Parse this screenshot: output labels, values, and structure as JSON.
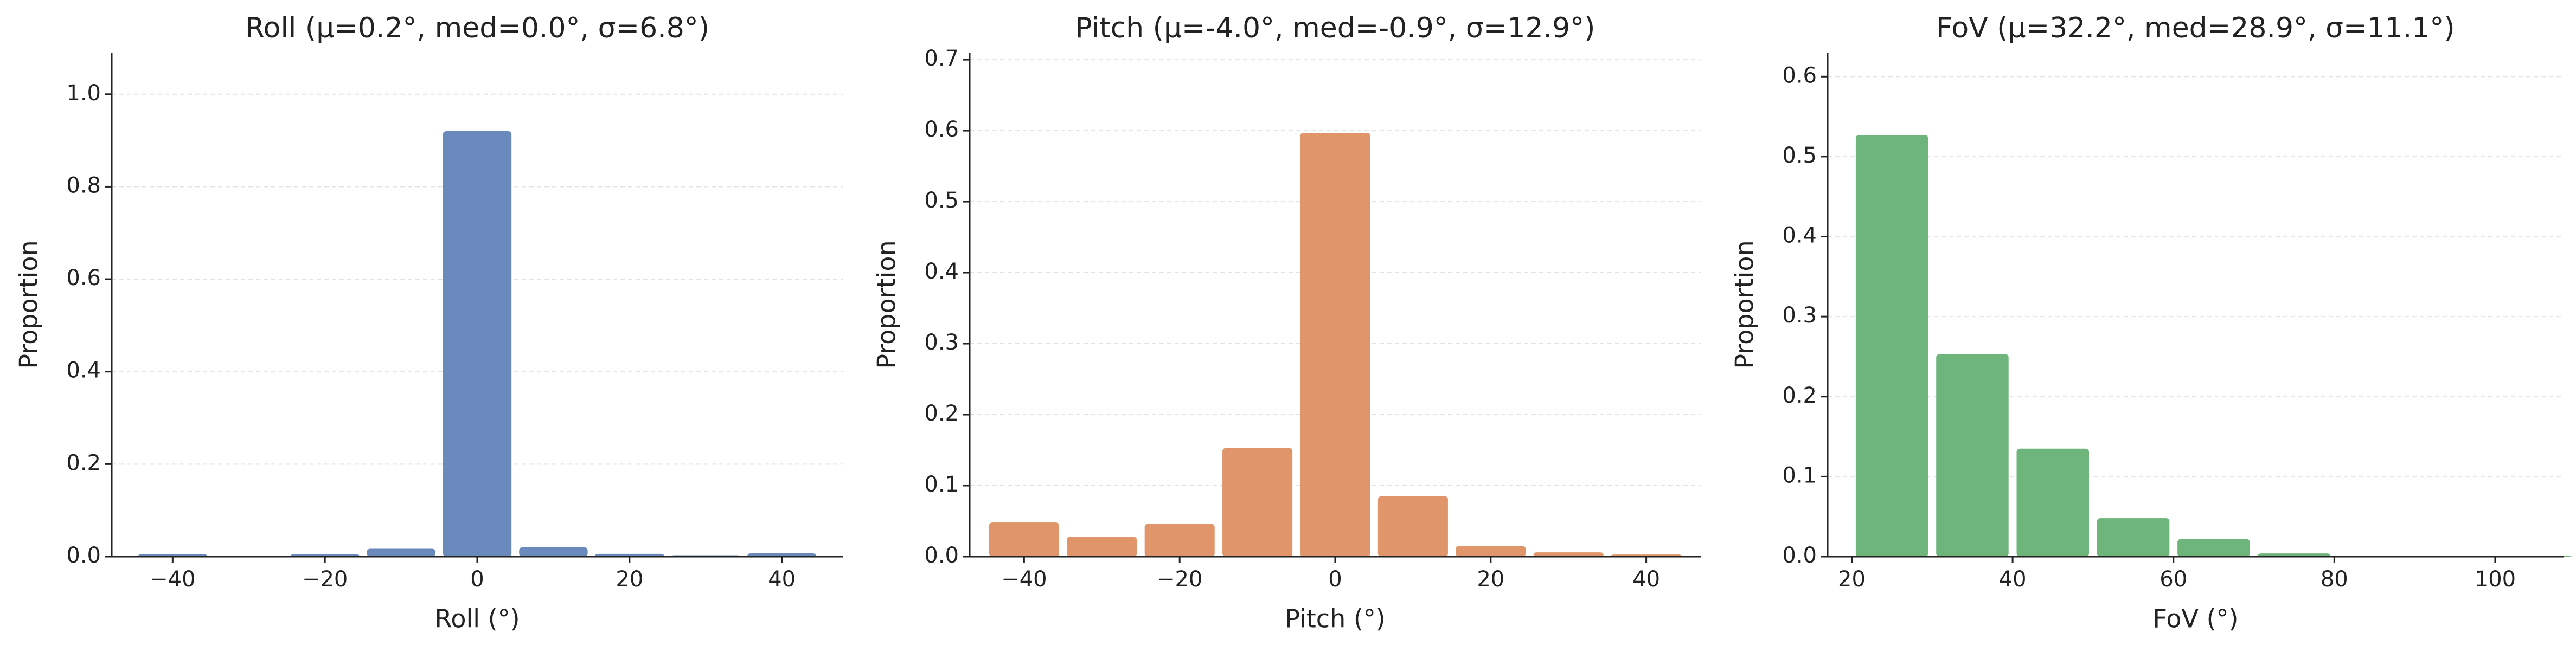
{
  "chart_data": [
    {
      "type": "histogram",
      "title": "Roll  (μ=0.2°, med=0.0°, σ=6.8°)",
      "xlabel": "Roll (°)",
      "ylabel": "Proportion",
      "bins": [
        -45,
        -35,
        -25,
        -15,
        -5,
        5,
        15,
        25,
        35,
        45
      ],
      "values": [
        0.005,
        0.002,
        0.005,
        0.017,
        0.92,
        0.02,
        0.006,
        0.003,
        0.007
      ],
      "color": "#6a89bc",
      "grid": true,
      "xlim": [
        -48,
        48
      ],
      "ylim": [
        0,
        1.09
      ],
      "xticks": [
        {
          "value": -40,
          "label": "−40"
        },
        {
          "value": -20,
          "label": "−20"
        },
        0,
        20,
        40
      ],
      "yticks": [
        {
          "value": 0,
          "label": "0.0"
        },
        0.2,
        0.4,
        0.6,
        0.8,
        {
          "value": 1,
          "label": "1.0"
        }
      ]
    },
    {
      "type": "histogram",
      "title": "Pitch  (μ=-4.0°, med=-0.9°, σ=12.9°)",
      "xlabel": "Pitch (°)",
      "ylabel": "Proportion",
      "bins": [
        -45,
        -35,
        -25,
        -15,
        -5,
        5,
        15,
        25,
        35,
        45
      ],
      "values": [
        0.048,
        0.028,
        0.046,
        0.153,
        0.597,
        0.085,
        0.015,
        0.006,
        0.003
      ],
      "color": "#e0956a",
      "grid": true,
      "xlim": [
        -47,
        47
      ],
      "ylim": [
        0,
        0.71
      ],
      "xticks": [
        {
          "value": -40,
          "label": "−40"
        },
        {
          "value": -20,
          "label": "−20"
        },
        0,
        20,
        40
      ],
      "yticks": [
        {
          "value": 0,
          "label": "0.0"
        },
        0.1,
        0.2,
        0.3,
        0.4,
        0.5,
        0.6,
        0.7
      ]
    },
    {
      "type": "histogram",
      "title": "FoV  (μ=32.2°, med=28.9°, σ=11.1°)",
      "xlabel": "FoV (°)",
      "ylabel": "Proportion",
      "bins": [
        20,
        30,
        40,
        50,
        60,
        70,
        80,
        90,
        100,
        110
      ],
      "values": [
        0.527,
        0.253,
        0.135,
        0.048,
        0.022,
        0.004,
        0.001,
        0.001,
        0.001
      ],
      "color": "#6db57b",
      "grid": true,
      "xlim": [
        17,
        108.5
      ],
      "ylim": [
        0,
        0.63
      ],
      "xticks": [
        20,
        40,
        60,
        80,
        100
      ],
      "yticks": [
        {
          "value": 0,
          "label": "0.0"
        },
        0.1,
        0.2,
        0.3,
        0.4,
        0.5,
        0.6
      ]
    }
  ]
}
